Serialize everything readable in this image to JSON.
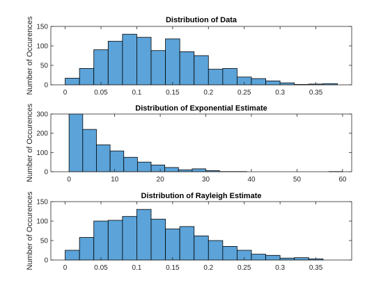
{
  "chart_data": [
    {
      "type": "bar",
      "title": "Distribution of Data",
      "ylabel": "Number of Occurences",
      "xlim": [
        -0.02,
        0.4
      ],
      "ylim": [
        0,
        150
      ],
      "xticks": [
        0,
        0.05,
        0.1,
        0.15,
        0.2,
        0.25,
        0.3,
        0.35
      ],
      "xtick_labels": [
        "0",
        "0.05",
        "0.1",
        "0.15",
        "0.2",
        "0.25",
        "0.3",
        "0.35"
      ],
      "yticks": [
        0,
        50,
        100,
        150
      ],
      "ytick_labels": [
        "0",
        "50",
        "100",
        "150"
      ],
      "bin_edges": [
        0,
        0.02,
        0.04,
        0.06,
        0.08,
        0.1,
        0.12,
        0.14,
        0.16,
        0.18,
        0.2,
        0.22,
        0.24,
        0.26,
        0.28,
        0.3,
        0.32,
        0.34,
        0.36,
        0.38
      ],
      "values": [
        17,
        42,
        90,
        112,
        130,
        122,
        88,
        118,
        85,
        75,
        40,
        42,
        20,
        16,
        10,
        5,
        1,
        2,
        3
      ],
      "bar_color": "#5BA3D9"
    },
    {
      "type": "bar",
      "title": "Distribution of Exponential Estimate",
      "ylabel": "Number of Occurences",
      "xlim": [
        -4,
        62
      ],
      "ylim": [
        0,
        300
      ],
      "xticks": [
        0,
        10,
        20,
        30,
        40,
        50,
        60
      ],
      "xtick_labels": [
        "0",
        "10",
        "20",
        "30",
        "40",
        "50",
        "60"
      ],
      "yticks": [
        0,
        100,
        200,
        300
      ],
      "ytick_labels": [
        "0",
        "100",
        "200",
        "300"
      ],
      "bin_edges": [
        0,
        3,
        6,
        9,
        12,
        15,
        18,
        21,
        24,
        27,
        30,
        33,
        36,
        39,
        42,
        45,
        48,
        51,
        54,
        57,
        60
      ],
      "values": [
        300,
        220,
        140,
        108,
        75,
        50,
        35,
        22,
        10,
        15,
        6,
        1,
        1,
        0,
        0,
        0,
        0,
        0,
        0,
        1
      ],
      "bar_color": "#5BA3D9"
    },
    {
      "type": "bar",
      "title": "Distribution of Rayleigh Estimate",
      "ylabel": "Number of Occurences",
      "xlim": [
        -0.02,
        0.4
      ],
      "ylim": [
        0,
        150
      ],
      "xticks": [
        0,
        0.05,
        0.1,
        0.15,
        0.2,
        0.25,
        0.3,
        0.35
      ],
      "xtick_labels": [
        "0",
        "0.05",
        "0.1",
        "0.15",
        "0.2",
        "0.25",
        "0.3",
        "0.35"
      ],
      "yticks": [
        0,
        50,
        100,
        150
      ],
      "ytick_labels": [
        "0",
        "50",
        "100",
        "150"
      ],
      "bin_edges": [
        0,
        0.02,
        0.04,
        0.06,
        0.08,
        0.1,
        0.12,
        0.14,
        0.16,
        0.18,
        0.2,
        0.22,
        0.24,
        0.26,
        0.28,
        0.3,
        0.32,
        0.34,
        0.36
      ],
      "values": [
        25,
        58,
        100,
        102,
        112,
        130,
        105,
        80,
        86,
        62,
        50,
        35,
        25,
        15,
        12,
        5,
        6,
        3
      ],
      "bar_color": "#5BA3D9"
    }
  ]
}
